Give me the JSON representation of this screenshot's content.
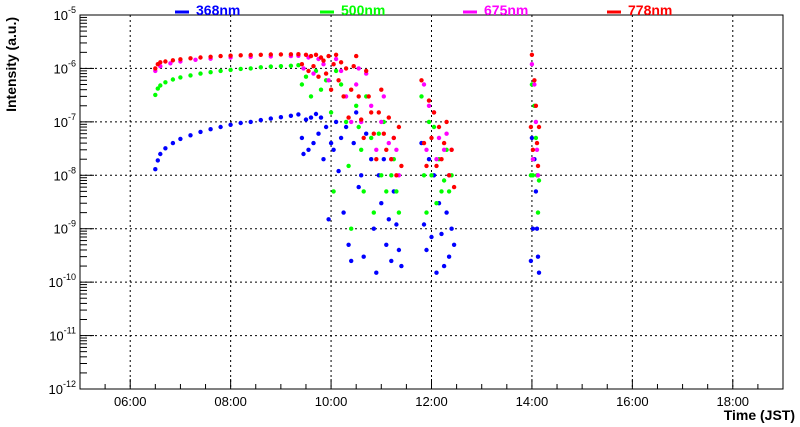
{
  "chart_data": {
    "type": "scatter",
    "title": "",
    "xlabel": "Time (JST)",
    "ylabel": "Intensity (a.u.)",
    "x_unit": "hours",
    "xlim": [
      5.0,
      19.0
    ],
    "ylim": [
      1e-12,
      1e-05
    ],
    "y_scale": "log",
    "grid": true,
    "legend_position": "top",
    "x_ticks": [
      {
        "value": 6,
        "label": "06:00"
      },
      {
        "value": 8,
        "label": "08:00"
      },
      {
        "value": 10,
        "label": "10:00"
      },
      {
        "value": 12,
        "label": "12:00"
      },
      {
        "value": 14,
        "label": "14:00"
      },
      {
        "value": 16,
        "label": "16:00"
      },
      {
        "value": 18,
        "label": "18:00"
      }
    ],
    "y_ticks": [
      {
        "value": 1e-12,
        "base": "10",
        "exp": "-12"
      },
      {
        "value": 1e-11,
        "base": "10",
        "exp": "-11"
      },
      {
        "value": 1e-10,
        "base": "10",
        "exp": "-10"
      },
      {
        "value": 1e-09,
        "base": "10",
        "exp": "-9"
      },
      {
        "value": 1e-08,
        "base": "10",
        "exp": "-8"
      },
      {
        "value": 1e-07,
        "base": "10",
        "exp": "-7"
      },
      {
        "value": 1e-06,
        "base": "10",
        "exp": "-6"
      },
      {
        "value": 1e-05,
        "base": "10",
        "exp": "-5"
      }
    ],
    "series": [
      {
        "name": "368nm",
        "color": "#0000ff",
        "points": [
          [
            6.5,
            1.3e-08
          ],
          [
            6.55,
            1.9e-08
          ],
          [
            6.6,
            2.5e-08
          ],
          [
            6.7,
            3.2e-08
          ],
          [
            6.85,
            4e-08
          ],
          [
            7.0,
            4.8e-08
          ],
          [
            7.2,
            5.6e-08
          ],
          [
            7.4,
            6.5e-08
          ],
          [
            7.6,
            7.3e-08
          ],
          [
            7.8,
            8e-08
          ],
          [
            8.0,
            8.8e-08
          ],
          [
            8.2,
            9.5e-08
          ],
          [
            8.4,
            1e-07
          ],
          [
            8.6,
            1.08e-07
          ],
          [
            8.8,
            1.15e-07
          ],
          [
            9.0,
            1.22e-07
          ],
          [
            9.2,
            1.3e-07
          ],
          [
            9.35,
            1.38e-07
          ],
          [
            9.42,
            5e-08
          ],
          [
            9.45,
            2.5e-08
          ],
          [
            9.5,
            1.1e-07
          ],
          [
            9.55,
            3e-08
          ],
          [
            9.6,
            1.2e-07
          ],
          [
            9.65,
            4e-08
          ],
          [
            9.7,
            1.4e-07
          ],
          [
            9.75,
            6e-08
          ],
          [
            9.8,
            1.2e-07
          ],
          [
            9.85,
            2e-08
          ],
          [
            9.9,
            8e-08
          ],
          [
            9.95,
            1.5e-09
          ],
          [
            10.0,
            4e-08
          ],
          [
            10.05,
            3e-08
          ],
          [
            10.1,
            1e-07
          ],
          [
            10.15,
            1.2e-08
          ],
          [
            10.2,
            5e-08
          ],
          [
            10.25,
            2e-09
          ],
          [
            10.3,
            8e-08
          ],
          [
            10.35,
            5e-10
          ],
          [
            10.4,
            2.5e-10
          ],
          [
            10.45,
            4e-08
          ],
          [
            10.5,
            1.5e-07
          ],
          [
            10.55,
            6e-09
          ],
          [
            10.6,
            1e-08
          ],
          [
            10.65,
            3e-10
          ],
          [
            10.7,
            6e-08
          ],
          [
            10.8,
            2e-08
          ],
          [
            10.85,
            1e-09
          ],
          [
            10.9,
            1.5e-10
          ],
          [
            10.95,
            1e-08
          ],
          [
            11.0,
            3e-09
          ],
          [
            11.05,
            2e-08
          ],
          [
            11.1,
            5e-10
          ],
          [
            11.15,
            1.5e-09
          ],
          [
            11.2,
            2.5e-10
          ],
          [
            11.25,
            5e-09
          ],
          [
            11.3,
            1.2e-09
          ],
          [
            11.35,
            4e-10
          ],
          [
            11.4,
            2e-10
          ],
          [
            11.8,
            4e-08
          ],
          [
            11.85,
            1.2e-09
          ],
          [
            11.9,
            4e-10
          ],
          [
            11.95,
            2e-08
          ],
          [
            12.0,
            7e-10
          ],
          [
            12.05,
            1e-08
          ],
          [
            12.1,
            1.5e-10
          ],
          [
            12.15,
            3e-09
          ],
          [
            12.2,
            8e-10
          ],
          [
            12.25,
            2e-10
          ],
          [
            12.3,
            2e-09
          ],
          [
            12.35,
            3e-10
          ],
          [
            12.4,
            1e-09
          ],
          [
            12.45,
            5e-10
          ],
          [
            13.98,
            2.5e-10
          ],
          [
            14.0,
            5e-08
          ],
          [
            14.02,
            1e-09
          ],
          [
            14.05,
            2e-08
          ],
          [
            14.08,
            5e-09
          ],
          [
            14.1,
            1e-09
          ],
          [
            14.12,
            3e-10
          ],
          [
            14.14,
            1.5e-10
          ]
        ]
      },
      {
        "name": "500nm",
        "color": "#00ff00",
        "points": [
          [
            6.5,
            3.2e-07
          ],
          [
            6.55,
            4.2e-07
          ],
          [
            6.6,
            4.8e-07
          ],
          [
            6.7,
            5.5e-07
          ],
          [
            6.85,
            6.2e-07
          ],
          [
            7.0,
            6.8e-07
          ],
          [
            7.2,
            7.4e-07
          ],
          [
            7.4,
            8e-07
          ],
          [
            7.6,
            8.5e-07
          ],
          [
            7.8,
            9e-07
          ],
          [
            8.0,
            9.4e-07
          ],
          [
            8.2,
            9.8e-07
          ],
          [
            8.4,
            1e-06
          ],
          [
            8.6,
            1.05e-06
          ],
          [
            8.8,
            1.08e-06
          ],
          [
            9.0,
            1.1e-06
          ],
          [
            9.2,
            1.12e-06
          ],
          [
            9.35,
            1.15e-06
          ],
          [
            9.42,
            5e-07
          ],
          [
            9.5,
            7e-07
          ],
          [
            9.6,
            3e-07
          ],
          [
            9.7,
            9e-07
          ],
          [
            9.8,
            4e-07
          ],
          [
            9.9,
            6e-07
          ],
          [
            10.0,
            1.5e-07
          ],
          [
            10.05,
            5e-09
          ],
          [
            10.1,
            9e-07
          ],
          [
            10.2,
            5e-07
          ],
          [
            10.3,
            1e-07
          ],
          [
            10.35,
            1.5e-08
          ],
          [
            10.4,
            1e-09
          ],
          [
            10.5,
            2e-07
          ],
          [
            10.55,
            8e-08
          ],
          [
            10.6,
            3e-08
          ],
          [
            10.65,
            5e-09
          ],
          [
            10.7,
            3e-07
          ],
          [
            10.8,
            5e-08
          ],
          [
            10.85,
            2e-09
          ],
          [
            10.95,
            6e-08
          ],
          [
            11.0,
            1e-08
          ],
          [
            11.05,
            1e-07
          ],
          [
            11.1,
            5e-09
          ],
          [
            11.2,
            1e-08
          ],
          [
            11.25,
            2e-08
          ],
          [
            11.3,
            5e-09
          ],
          [
            11.35,
            2e-09
          ],
          [
            11.8,
            3e-07
          ],
          [
            11.85,
            1e-08
          ],
          [
            11.9,
            2e-09
          ],
          [
            11.95,
            1e-07
          ],
          [
            12.0,
            1e-08
          ],
          [
            12.05,
            8e-08
          ],
          [
            12.1,
            3e-09
          ],
          [
            12.15,
            2e-08
          ],
          [
            12.2,
            5e-09
          ],
          [
            12.25,
            8e-09
          ],
          [
            12.3,
            3e-08
          ],
          [
            12.35,
            5e-09
          ],
          [
            12.4,
            1e-08
          ],
          [
            13.98,
            1e-08
          ],
          [
            14.0,
            5e-07
          ],
          [
            14.02,
            1e-08
          ],
          [
            14.05,
            2e-07
          ],
          [
            14.08,
            5e-08
          ],
          [
            14.1,
            1e-08
          ],
          [
            14.12,
            2e-09
          ],
          [
            14.14,
            8e-09
          ]
        ]
      },
      {
        "name": "675nm",
        "color": "#ff00ff",
        "points": [
          [
            6.5,
            9e-07
          ],
          [
            6.6,
            1.1e-06
          ],
          [
            6.8,
            1.25e-06
          ],
          [
            7.0,
            1.35e-06
          ],
          [
            7.3,
            1.45e-06
          ],
          [
            7.6,
            1.52e-06
          ],
          [
            8.0,
            1.6e-06
          ],
          [
            8.4,
            1.65e-06
          ],
          [
            8.8,
            1.68e-06
          ],
          [
            9.2,
            1.7e-06
          ],
          [
            9.35,
            1.72e-06
          ],
          [
            9.45,
            1e-06
          ],
          [
            9.55,
            1.6e-06
          ],
          [
            9.65,
            8e-07
          ],
          [
            9.75,
            1.5e-06
          ],
          [
            9.85,
            1.2e-06
          ],
          [
            9.95,
            6e-07
          ],
          [
            10.1,
            1.5e-06
          ],
          [
            10.2,
            9e-07
          ],
          [
            10.3,
            3e-07
          ],
          [
            10.4,
            1e-07
          ],
          [
            10.5,
            5e-07
          ],
          [
            10.55,
            1e-06
          ],
          [
            10.6,
            1e-07
          ],
          [
            10.7,
            8e-07
          ],
          [
            10.8,
            2e-07
          ],
          [
            10.9,
            3e-08
          ],
          [
            11.0,
            1e-07
          ],
          [
            11.05,
            3e-07
          ],
          [
            11.15,
            4e-08
          ],
          [
            11.2,
            2e-08
          ],
          [
            11.25,
            5e-08
          ],
          [
            11.3,
            3e-08
          ],
          [
            11.35,
            1e-08
          ],
          [
            11.85,
            5e-07
          ],
          [
            11.9,
            3e-08
          ],
          [
            11.95,
            2e-07
          ],
          [
            12.05,
            1.5e-07
          ],
          [
            12.1,
            2e-08
          ],
          [
            12.15,
            5e-08
          ],
          [
            12.25,
            3e-08
          ],
          [
            12.3,
            6e-08
          ],
          [
            12.35,
            1e-08
          ],
          [
            12.4,
            3e-08
          ],
          [
            14.0,
            1.2e-06
          ],
          [
            14.02,
            2e-08
          ],
          [
            14.05,
            5e-07
          ],
          [
            14.08,
            1e-07
          ],
          [
            14.1,
            3e-08
          ],
          [
            14.12,
            1e-08
          ]
        ]
      },
      {
        "name": "778nm",
        "color": "#ff0000",
        "points": [
          [
            6.5,
            1e-06
          ],
          [
            6.55,
            1.2e-06
          ],
          [
            6.6,
            1.3e-06
          ],
          [
            6.7,
            1.35e-06
          ],
          [
            6.85,
            1.42e-06
          ],
          [
            7.0,
            1.48e-06
          ],
          [
            7.2,
            1.55e-06
          ],
          [
            7.4,
            1.6e-06
          ],
          [
            7.6,
            1.65e-06
          ],
          [
            7.8,
            1.7e-06
          ],
          [
            8.0,
            1.73e-06
          ],
          [
            8.2,
            1.76e-06
          ],
          [
            8.4,
            1.78e-06
          ],
          [
            8.6,
            1.8e-06
          ],
          [
            8.8,
            1.82e-06
          ],
          [
            9.0,
            1.83e-06
          ],
          [
            9.2,
            1.84e-06
          ],
          [
            9.35,
            1.85e-06
          ],
          [
            9.42,
            1.2e-06
          ],
          [
            9.5,
            1.8e-06
          ],
          [
            9.55,
            9e-07
          ],
          [
            9.6,
            1.7e-06
          ],
          [
            9.65,
            1.1e-06
          ],
          [
            9.7,
            1.8e-06
          ],
          [
            9.75,
            7e-07
          ],
          [
            9.8,
            1.6e-06
          ],
          [
            9.85,
            1.4e-06
          ],
          [
            9.9,
            8e-07
          ],
          [
            9.95,
            1.7e-06
          ],
          [
            10.0,
            4e-07
          ],
          [
            10.05,
            1.2e-06
          ],
          [
            10.1,
            1.8e-06
          ],
          [
            10.15,
            6e-07
          ],
          [
            10.2,
            1.3e-06
          ],
          [
            10.25,
            3e-07
          ],
          [
            10.3,
            1e-06
          ],
          [
            10.35,
            1.2e-07
          ],
          [
            10.4,
            4e-07
          ],
          [
            10.45,
            1.1e-06
          ],
          [
            10.5,
            1.7e-06
          ],
          [
            10.55,
            3e-07
          ],
          [
            10.6,
            1.1e-07
          ],
          [
            10.65,
            5e-08
          ],
          [
            10.7,
            9e-07
          ],
          [
            10.75,
            3e-07
          ],
          [
            10.8,
            1.5e-07
          ],
          [
            10.85,
            6e-08
          ],
          [
            10.9,
            2e-08
          ],
          [
            10.95,
            1.5e-07
          ],
          [
            11.0,
            4e-07
          ],
          [
            11.05,
            6e-08
          ],
          [
            11.1,
            3e-08
          ],
          [
            11.15,
            1.2e-07
          ],
          [
            11.2,
            2e-08
          ],
          [
            11.25,
            5e-08
          ],
          [
            11.3,
            1e-08
          ],
          [
            11.35,
            8e-08
          ],
          [
            11.4,
            1.5e-08
          ],
          [
            11.8,
            6e-07
          ],
          [
            11.85,
            4e-08
          ],
          [
            11.9,
            1.5e-08
          ],
          [
            11.95,
            2.5e-07
          ],
          [
            12.0,
            5e-08
          ],
          [
            12.05,
            1.5e-07
          ],
          [
            12.1,
            1.5e-08
          ],
          [
            12.15,
            8e-08
          ],
          [
            12.2,
            2e-08
          ],
          [
            12.25,
            4e-08
          ],
          [
            12.3,
            1e-07
          ],
          [
            12.35,
            1e-08
          ],
          [
            12.4,
            3e-08
          ],
          [
            12.45,
            6e-09
          ],
          [
            13.98,
            8e-08
          ],
          [
            14.0,
            1.8e-06
          ],
          [
            14.02,
            3e-08
          ],
          [
            14.05,
            6e-07
          ],
          [
            14.08,
            2e-07
          ],
          [
            14.1,
            4e-08
          ],
          [
            14.12,
            1.5e-08
          ],
          [
            14.14,
            8e-08
          ]
        ]
      }
    ]
  }
}
